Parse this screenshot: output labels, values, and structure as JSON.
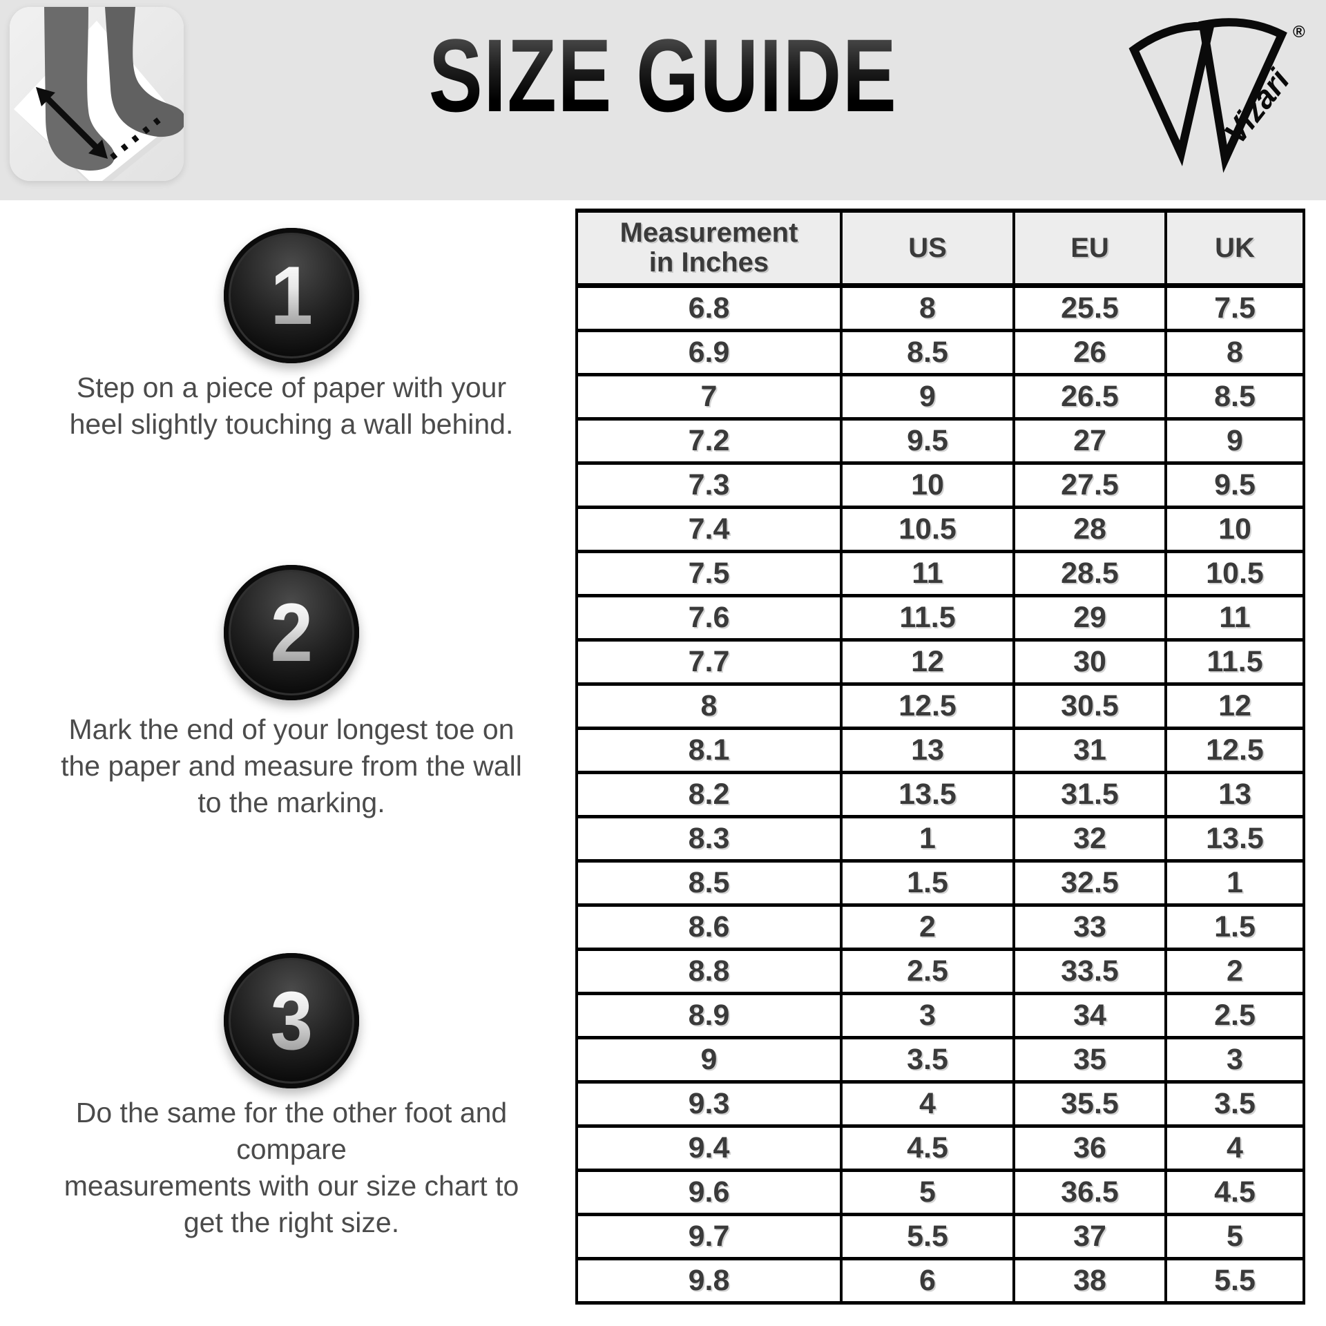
{
  "header": {
    "title": "SIZE GUIDE",
    "brand": "Vizari",
    "registered_mark": "®"
  },
  "steps": [
    {
      "number": "1",
      "text": "Step on a piece of paper with your\nheel slightly touching a wall behind."
    },
    {
      "number": "2",
      "text": "Mark the end of your longest toe on\nthe paper and measure from the wall\nto the marking."
    },
    {
      "number": "3",
      "text": "Do the same for the other foot and\ncompare\nmeasurements with our size chart to\nget the right size."
    }
  ],
  "size_table": {
    "columns": [
      "Measurement\nin Inches",
      "US",
      "EU",
      "UK"
    ],
    "rows": [
      [
        "6.8",
        "8",
        "25.5",
        "7.5"
      ],
      [
        "6.9",
        "8.5",
        "26",
        "8"
      ],
      [
        "7",
        "9",
        "26.5",
        "8.5"
      ],
      [
        "7.2",
        "9.5",
        "27",
        "9"
      ],
      [
        "7.3",
        "10",
        "27.5",
        "9.5"
      ],
      [
        "7.4",
        "10.5",
        "28",
        "10"
      ],
      [
        "7.5",
        "11",
        "28.5",
        "10.5"
      ],
      [
        "7.6",
        "11.5",
        "29",
        "11"
      ],
      [
        "7.7",
        "12",
        "30",
        "11.5"
      ],
      [
        "8",
        "12.5",
        "30.5",
        "12"
      ],
      [
        "8.1",
        "13",
        "31",
        "12.5"
      ],
      [
        "8.2",
        "13.5",
        "31.5",
        "13"
      ],
      [
        "8.3",
        "1",
        "32",
        "13.5"
      ],
      [
        "8.5",
        "1.5",
        "32.5",
        "1"
      ],
      [
        "8.6",
        "2",
        "33",
        "1.5"
      ],
      [
        "8.8",
        "2.5",
        "33.5",
        "2"
      ],
      [
        "8.9",
        "3",
        "34",
        "2.5"
      ],
      [
        "9",
        "3.5",
        "35",
        "3"
      ],
      [
        "9.3",
        "4",
        "35.5",
        "3.5"
      ],
      [
        "9.4",
        "4.5",
        "36",
        "4"
      ],
      [
        "9.6",
        "5",
        "36.5",
        "4.5"
      ],
      [
        "9.7",
        "5.5",
        "37",
        "5"
      ],
      [
        "9.8",
        "6",
        "38",
        "5.5"
      ]
    ]
  },
  "colors": {
    "band": "#e4e4e4",
    "table_header_bg": "#ededed",
    "table_border": "#000000",
    "table_text": "#3a3a3a",
    "step_text": "#4b4b4b",
    "badge_fill": "#111111"
  }
}
